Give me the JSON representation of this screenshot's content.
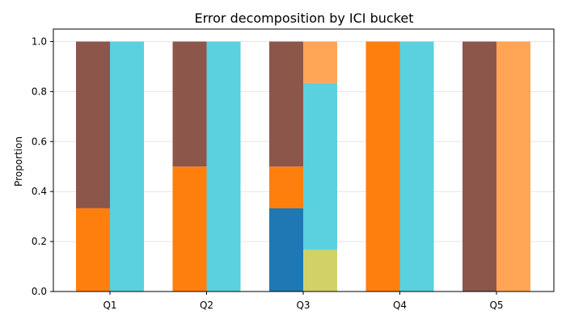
{
  "chart_data": {
    "type": "bar",
    "title": "Error decomposition by ICI bucket",
    "xlabel": "",
    "ylabel": "Proportion",
    "ylim": [
      0,
      1.05
    ],
    "yticks": [
      "0.0",
      "0.2",
      "0.4",
      "0.6",
      "0.8",
      "1.0"
    ],
    "grid": "horizontal",
    "categories": [
      "Q1",
      "Q2",
      "Q3",
      "Q4",
      "Q5"
    ],
    "stacked_bar_pairs": [
      {
        "category": "Q1",
        "left": [
          {
            "value": 0.333,
            "color": "#ff7f0e"
          },
          {
            "value": 0.667,
            "color": "#8c564b"
          }
        ],
        "right": [
          {
            "value": 1.0,
            "color": "#5bd0de"
          }
        ]
      },
      {
        "category": "Q2",
        "left": [
          {
            "value": 0.5,
            "color": "#ff7f0e"
          },
          {
            "value": 0.5,
            "color": "#8c564b"
          }
        ],
        "right": [
          {
            "value": 1.0,
            "color": "#5bd0de"
          }
        ]
      },
      {
        "category": "Q3",
        "left": [
          {
            "value": 0.333,
            "color": "#1f77b4"
          },
          {
            "value": 0.167,
            "color": "#ff7f0e"
          },
          {
            "value": 0.5,
            "color": "#8c564b"
          }
        ],
        "right": [
          {
            "value": 0.167,
            "color": "#d2d168"
          },
          {
            "value": 0.667,
            "color": "#5bd0de"
          },
          {
            "value": 0.166,
            "color": "#ffa555"
          }
        ]
      },
      {
        "category": "Q4",
        "left": [
          {
            "value": 1.0,
            "color": "#ff7f0e"
          }
        ],
        "right": [
          {
            "value": 1.0,
            "color": "#5bd0de"
          }
        ]
      },
      {
        "category": "Q5",
        "left": [
          {
            "value": 1.0,
            "color": "#8c564b"
          }
        ],
        "right": [
          {
            "value": 1.0,
            "color": "#ffa555"
          }
        ]
      }
    ]
  }
}
